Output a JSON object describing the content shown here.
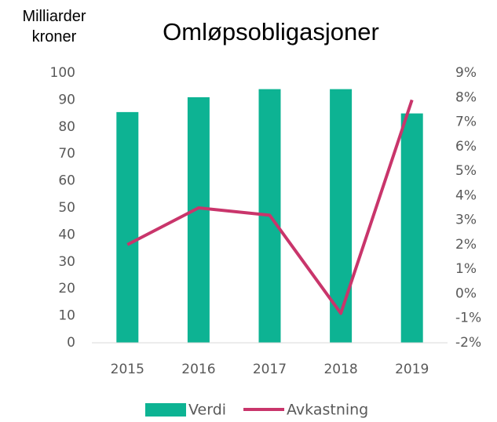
{
  "chart_data": {
    "type": "bar",
    "title": "Omløpsobligasjoner",
    "ylabel": "Milliarder kroner",
    "categories": [
      "2015",
      "2016",
      "2017",
      "2018",
      "2019"
    ],
    "series": [
      {
        "name": "Verdi",
        "type": "bar",
        "color": "#0db393",
        "values": [
          85.5,
          91,
          94,
          94,
          85
        ]
      },
      {
        "name": "Avkastning",
        "type": "line",
        "axis": "y2",
        "color": "#c9356b",
        "values": [
          2.0,
          3.5,
          3.2,
          -0.8,
          7.9
        ]
      }
    ],
    "ylim": [
      0,
      100
    ],
    "yticks": [
      0,
      10,
      20,
      30,
      40,
      50,
      60,
      70,
      80,
      90,
      100
    ],
    "y2lim": [
      -2,
      9
    ],
    "y2ticks": [
      {
        "value": -2,
        "label": "-2%"
      },
      {
        "value": -1,
        "label": "-1%"
      },
      {
        "value": 0,
        "label": "0%"
      },
      {
        "value": 1,
        "label": "1%"
      },
      {
        "value": 2,
        "label": "2%"
      },
      {
        "value": 3,
        "label": "3%"
      },
      {
        "value": 4,
        "label": "4%"
      },
      {
        "value": 5,
        "label": "5%"
      },
      {
        "value": 6,
        "label": "6%"
      },
      {
        "value": 7,
        "label": "7%"
      },
      {
        "value": 8,
        "label": "8%"
      },
      {
        "value": 9,
        "label": "9%"
      }
    ],
    "grid": false,
    "legend": "bottom"
  }
}
